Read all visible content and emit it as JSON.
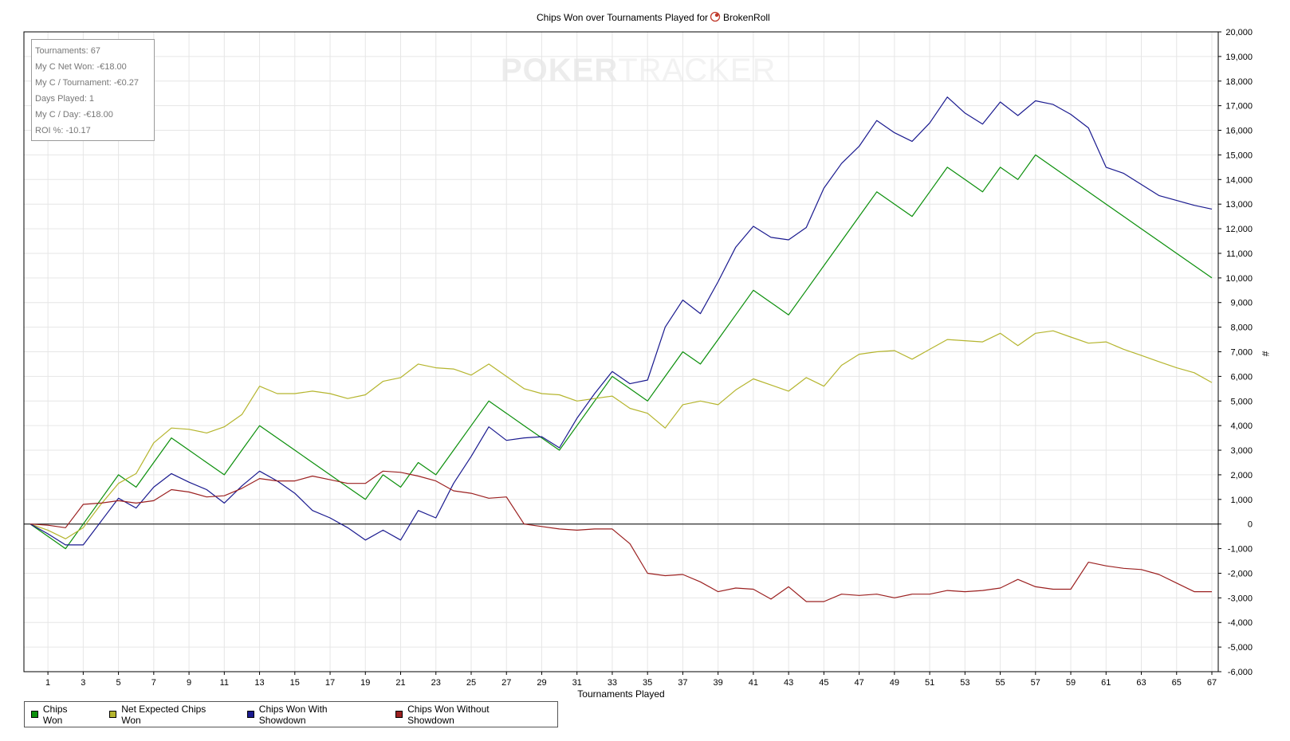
{
  "chart_data": {
    "type": "line",
    "title": "Chips Won over Tournaments Played for",
    "player": "BrokenRoll",
    "xlabel": "Tournaments Played",
    "ylabel": "",
    "ylim": [
      -6000,
      20000
    ],
    "xlim": [
      0,
      67
    ],
    "y_axis_side": "right",
    "y_axis_symbol": "#",
    "grid": true,
    "legend_placement": "bottom-left",
    "x_ticks": [
      1,
      3,
      5,
      7,
      9,
      11,
      13,
      15,
      17,
      19,
      21,
      23,
      25,
      27,
      29,
      31,
      33,
      35,
      37,
      39,
      41,
      43,
      45,
      47,
      49,
      51,
      53,
      55,
      57,
      59,
      61,
      63,
      65,
      67
    ],
    "y_ticks": [
      20000,
      19000,
      18000,
      17000,
      16000,
      15000,
      14000,
      13000,
      12000,
      11000,
      10000,
      9000,
      8000,
      7000,
      6000,
      5000,
      4000,
      3000,
      2000,
      1000,
      0,
      -1000,
      -2000,
      -3000,
      -4000,
      -5000,
      -6000
    ],
    "y_tick_labels": [
      "20,000",
      "19,000",
      "18,000",
      "17,000",
      "16,000",
      "15,000",
      "14,000",
      "13,000",
      "12,000",
      "11,000",
      "10,000",
      "9,000",
      "8,000",
      "7,000",
      "6,000",
      "5,000",
      "4,000",
      "3,000",
      "2,000",
      "1,000",
      "0",
      "-1,000",
      "-2,000",
      "-3,000",
      "-4,000",
      "-5,000",
      "-6,000"
    ],
    "x": [
      0,
      1,
      2,
      3,
      4,
      5,
      6,
      7,
      8,
      9,
      10,
      11,
      12,
      13,
      14,
      15,
      16,
      17,
      18,
      19,
      20,
      21,
      22,
      23,
      24,
      25,
      26,
      27,
      28,
      29,
      30,
      31,
      32,
      33,
      34,
      35,
      36,
      37,
      38,
      39,
      40,
      41,
      42,
      43,
      44,
      45,
      46,
      47,
      48,
      49,
      50,
      51,
      52,
      53,
      54,
      55,
      56,
      57,
      58,
      59,
      60,
      61,
      62,
      63,
      64,
      65,
      66,
      67
    ],
    "series": [
      {
        "name": "Chips Won",
        "color": "#0b8f0b",
        "values": [
          0,
          -500,
          -1000,
          0,
          1000,
          2000,
          1500,
          2500,
          3500,
          3000,
          2500,
          2000,
          3000,
          4000,
          3500,
          3000,
          2500,
          2000,
          1500,
          1000,
          2000,
          1500,
          2500,
          2000,
          3000,
          4000,
          5000,
          4500,
          4000,
          3500,
          3000,
          4000,
          5000,
          6000,
          5500,
          5000,
          6000,
          7000,
          6500,
          7500,
          8500,
          9500,
          9000,
          8500,
          9500,
          10500,
          11500,
          12500,
          13500,
          13000,
          12500,
          13500,
          14500,
          14000,
          13500,
          14500,
          14000,
          15000,
          14500,
          14000,
          13500,
          13000,
          12500,
          12000,
          11500,
          11000,
          10500,
          10000
        ]
      },
      {
        "name": "Net Expected Chips Won",
        "color": "#b5b52e",
        "values": [
          0,
          -250,
          -600,
          -150,
          800,
          1650,
          2050,
          3300,
          3900,
          3850,
          3700,
          3950,
          4450,
          5600,
          5300,
          5300,
          5400,
          5300,
          5100,
          5250,
          5800,
          5950,
          6500,
          6350,
          6300,
          6050,
          6500,
          6000,
          5500,
          5300,
          5250,
          5000,
          5100,
          5200,
          4700,
          4500,
          3900,
          4850,
          5000,
          4850,
          5450,
          5900,
          5650,
          5400,
          5950,
          5600,
          6450,
          6900,
          7000,
          7050,
          6700,
          7100,
          7500,
          7450,
          7400,
          7750,
          7250,
          7750,
          7850,
          7600,
          7350,
          7400,
          7100,
          6850,
          6600,
          6350,
          6150,
          5750
        ]
      },
      {
        "name": "Chips Won With Showdown",
        "color": "#1a1a8f",
        "values": [
          0,
          -400,
          -850,
          -850,
          100,
          1050,
          650,
          1500,
          2050,
          1700,
          1400,
          850,
          1550,
          2150,
          1750,
          1250,
          550,
          250,
          -150,
          -650,
          -250,
          -650,
          550,
          250,
          1650,
          2750,
          3950,
          3400,
          3500,
          3550,
          3100,
          4300,
          5300,
          6200,
          5700,
          5850,
          8000,
          9100,
          8550,
          9850,
          11250,
          12100,
          11650,
          11550,
          12050,
          13650,
          14650,
          15350,
          16400,
          15900,
          15550,
          16300,
          17350,
          16700,
          16250,
          17150,
          16600,
          17200,
          17050,
          16650,
          16100,
          14500,
          14250,
          13800,
          13350,
          13150,
          12950,
          12800
        ]
      },
      {
        "name": "Chips Won Without Showdown",
        "color": "#9b2020",
        "values": [
          0,
          -50,
          -150,
          800,
          850,
          950,
          850,
          950,
          1400,
          1300,
          1100,
          1150,
          1450,
          1850,
          1750,
          1750,
          1950,
          1800,
          1650,
          1650,
          2150,
          2100,
          1950,
          1750,
          1350,
          1250,
          1050,
          1100,
          0,
          -100,
          -200,
          -250,
          -200,
          -200,
          -800,
          -2000,
          -2100,
          -2050,
          -2350,
          -2750,
          -2600,
          -2650,
          -3050,
          -2550,
          -3150,
          -3150,
          -2850,
          -2900,
          -2850,
          -3000,
          -2850,
          -2850,
          -2700,
          -2750,
          -2700,
          -2600,
          -2250,
          -2550,
          -2650,
          -2650,
          -1550,
          -1700,
          -1800,
          -1850,
          -2050,
          -2400,
          -2750,
          -2750
        ]
      }
    ]
  },
  "stats": [
    "Tournaments: 67",
    "My C Net Won: -€18.00",
    "My C / Tournament: -€0.27",
    "Days Played: 1",
    "My C / Day: -€18.00",
    "ROI %: -10.17"
  ],
  "watermark": {
    "part1": "POKER",
    "part2": "TRACKER"
  }
}
